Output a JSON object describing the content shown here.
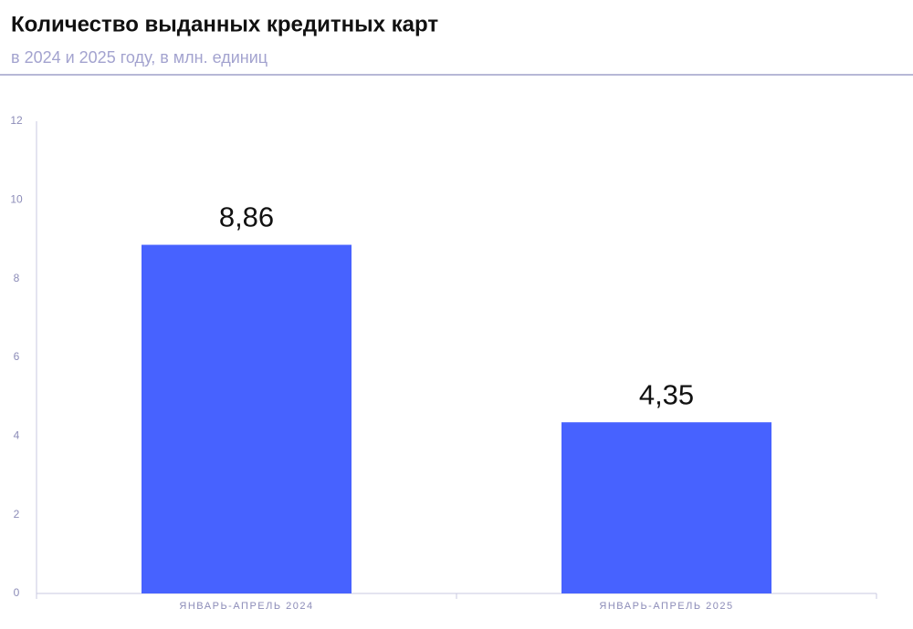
{
  "chart_data": {
    "type": "bar",
    "title": "Количество выданных кредитных карт",
    "subtitle": "в 2024 и 2025 году, в млн. единиц",
    "categories": [
      "ЯНВАРЬ-АПРЕЛЬ 2024",
      "ЯНВАРЬ-АПРЕЛЬ 2025"
    ],
    "values": [
      8.86,
      4.35
    ],
    "value_labels": [
      "8,86",
      "4,35"
    ],
    "color": "#4762ff",
    "ylim": [
      0,
      12
    ],
    "yticks": [
      0,
      2,
      4,
      6,
      8,
      10,
      12
    ],
    "grid": false
  }
}
